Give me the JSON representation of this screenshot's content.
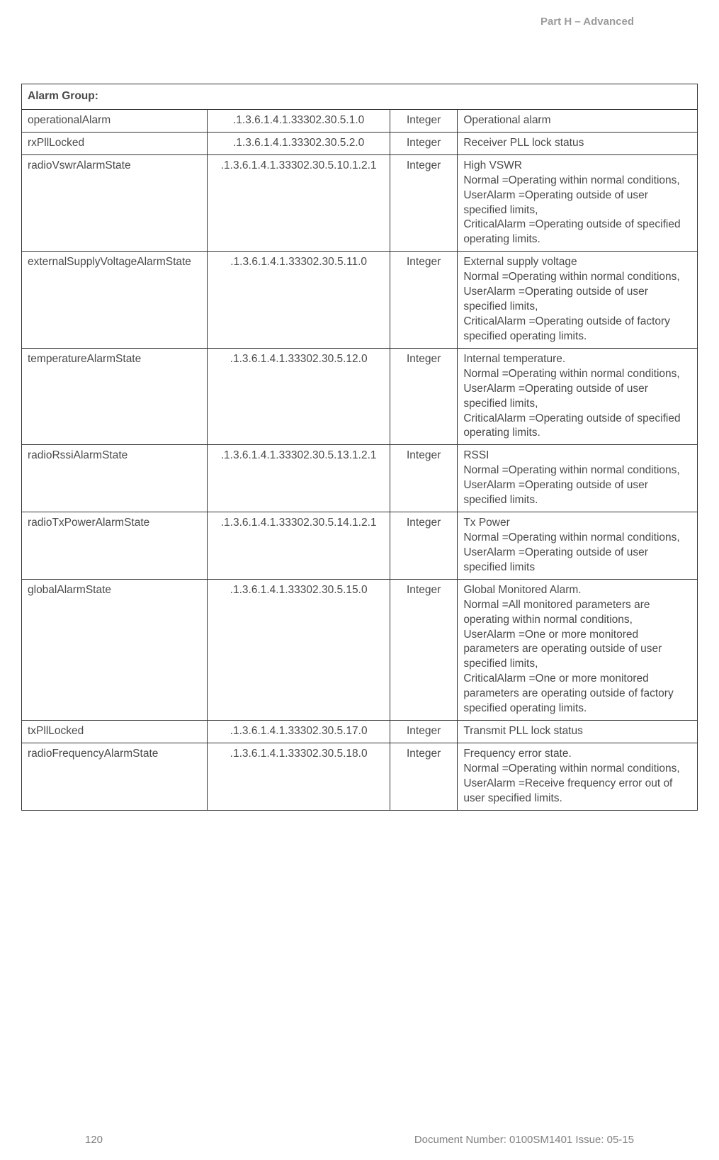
{
  "header": {
    "section": "Part H – Advanced"
  },
  "table": {
    "group_title": "Alarm Group:",
    "rows": [
      {
        "name": "operationalAlarm",
        "oid": ".1.3.6.1.4.1.33302.30.5.1.0",
        "type": "Integer",
        "desc": [
          "Operational alarm"
        ]
      },
      {
        "name": "rxPllLocked",
        "oid": ".1.3.6.1.4.1.33302.30.5.2.0",
        "type": "Integer",
        "desc": [
          "Receiver PLL lock status"
        ]
      },
      {
        "name": "radioVswrAlarmState",
        "oid": ".1.3.6.1.4.1.33302.30.5.10.1.2.1",
        "type": "Integer",
        "desc": [
          "High VSWR",
          "Normal =Operating within normal conditions,",
          "UserAlarm =Operating outside of user specified limits,",
          "CriticalAlarm =Operating outside of specified operating limits."
        ]
      },
      {
        "name": "externalSupplyVoltageAlarmState",
        "oid": ".1.3.6.1.4.1.33302.30.5.11.0",
        "type": "Integer",
        "desc": [
          "External supply voltage",
          "Normal =Operating within normal conditions,",
          "UserAlarm =Operating outside of user specified limits,",
          "CriticalAlarm =Operating outside of factory specified operating limits."
        ]
      },
      {
        "name": "temperatureAlarmState",
        "oid": ".1.3.6.1.4.1.33302.30.5.12.0",
        "type": "Integer",
        "desc": [
          "Internal temperature.",
          "Normal =Operating within normal conditions,",
          "UserAlarm =Operating outside of user specified limits,",
          "CriticalAlarm =Operating outside of specified operating limits."
        ]
      },
      {
        "name": "radioRssiAlarmState",
        "oid": ".1.3.6.1.4.1.33302.30.5.13.1.2.1",
        "type": "Integer",
        "desc": [
          "RSSI",
          "Normal =Operating within normal conditions,",
          "UserAlarm =Operating outside of user specified limits."
        ]
      },
      {
        "name": "radioTxPowerAlarmState",
        "oid": ".1.3.6.1.4.1.33302.30.5.14.1.2.1",
        "type": "Integer",
        "desc": [
          "Tx Power",
          "Normal =Operating within normal conditions,",
          "UserAlarm =Operating outside of user specified limits"
        ]
      },
      {
        "name": "globalAlarmState",
        "oid": ".1.3.6.1.4.1.33302.30.5.15.0",
        "type": "Integer",
        "desc": [
          "Global Monitored Alarm.",
          "Normal =All monitored parameters are operating within normal conditions,",
          "UserAlarm =One or more monitored parameters are operating outside of user specified limits,",
          "CriticalAlarm =One or more monitored parameters are operating outside of factory specified operating limits."
        ]
      },
      {
        "name": "txPllLocked",
        "oid": ".1.3.6.1.4.1.33302.30.5.17.0",
        "type": "Integer",
        "desc": [
          "Transmit PLL lock status"
        ]
      },
      {
        "name": "radioFrequencyAlarmState",
        "oid": ".1.3.6.1.4.1.33302.30.5.18.0",
        "type": "Integer",
        "desc": [
          "Frequency error state.",
          "Normal =Operating within normal conditions,",
          "UserAlarm =Receive frequency error out of user specified limits."
        ]
      }
    ]
  },
  "footer": {
    "page": "120",
    "doc": "Document Number: 0100SM1401   Issue: 05-15"
  }
}
